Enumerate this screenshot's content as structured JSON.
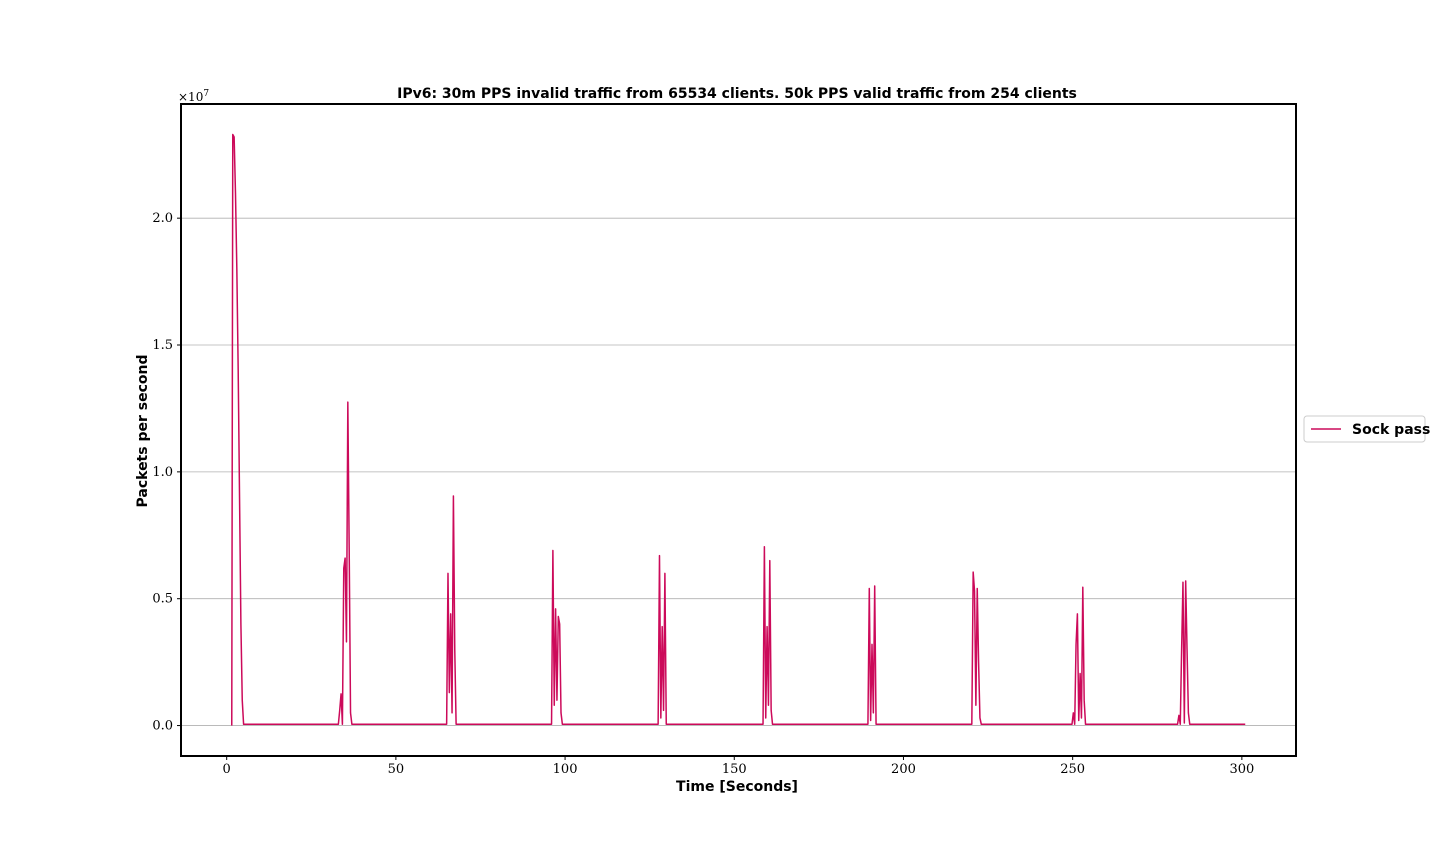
{
  "chart_data": {
    "type": "line",
    "title": "IPv6: 30m PPS invalid traffic from 65534 clients. 50k PPS valid traffic from 254 clients",
    "xlabel": "Time [Seconds]",
    "ylabel": "Packets per second",
    "y_multiplier_base": "×10",
    "y_multiplier_exp": "7",
    "xlim": [
      -13.5,
      316
    ],
    "ylim": [
      -0.12,
      2.45
    ],
    "xticks": [
      0,
      50,
      100,
      150,
      200,
      250,
      300
    ],
    "xtick_labels": [
      "0",
      "50",
      "100",
      "150",
      "200",
      "250",
      "300"
    ],
    "yticks": [
      0.0,
      0.5,
      1.0,
      1.5,
      2.0
    ],
    "ytick_labels": [
      "0.0",
      "0.5",
      "1.0",
      "1.5",
      "2.0"
    ],
    "grid": "horizontal",
    "legend_position": "right",
    "colors": {
      "series": "#cc0a5a",
      "grid": "#b0b0b0",
      "axes": "#000000"
    },
    "series": [
      {
        "name": "Sock pass",
        "x": [
          1.5,
          1.8,
          2.2,
          2.6,
          3.0,
          3.4,
          3.8,
          4.2,
          4.6,
          5.0,
          5.4,
          33.0,
          33.4,
          33.8,
          34.2,
          34.6,
          35.0,
          35.4,
          35.8,
          36.2,
          36.6,
          37.0,
          37.4,
          65.0,
          65.4,
          65.8,
          66.2,
          66.6,
          67.0,
          67.4,
          67.8,
          68.2,
          68.6,
          96.0,
          96.4,
          96.8,
          97.2,
          97.6,
          98.0,
          98.4,
          98.8,
          99.2,
          99.6,
          100.0,
          127.5,
          127.9,
          128.3,
          128.7,
          129.1,
          129.5,
          129.9,
          130.3,
          130.7,
          158.5,
          158.9,
          159.3,
          159.7,
          160.1,
          160.5,
          160.9,
          161.3,
          161.7,
          189.5,
          189.9,
          190.3,
          190.7,
          191.1,
          191.5,
          191.9,
          192.3,
          192.7,
          220.2,
          220.6,
          221.0,
          221.4,
          221.8,
          222.2,
          222.6,
          223.0,
          223.4,
          249.8,
          250.2,
          250.6,
          251.0,
          251.4,
          251.8,
          252.2,
          252.6,
          253.0,
          253.4,
          253.8,
          254.2,
          281.0,
          281.4,
          281.8,
          282.2,
          282.6,
          283.0,
          283.4,
          283.8,
          284.2,
          284.6,
          285.0,
          285.4,
          301.0
        ],
        "y": [
          0.0,
          2.33,
          2.32,
          2.1,
          1.8,
          1.4,
          0.9,
          0.4,
          0.1,
          0.005,
          0.005,
          0.005,
          0.06,
          0.125,
          0.005,
          0.62,
          0.66,
          0.33,
          1.275,
          0.7,
          0.05,
          0.005,
          0.005,
          0.005,
          0.6,
          0.13,
          0.44,
          0.05,
          0.905,
          0.3,
          0.005,
          0.005,
          0.005,
          0.005,
          0.69,
          0.08,
          0.46,
          0.1,
          0.43,
          0.4,
          0.05,
          0.005,
          0.005,
          0.005,
          0.005,
          0.67,
          0.03,
          0.39,
          0.06,
          0.6,
          0.005,
          0.005,
          0.005,
          0.005,
          0.705,
          0.03,
          0.39,
          0.08,
          0.65,
          0.06,
          0.005,
          0.005,
          0.005,
          0.54,
          0.02,
          0.32,
          0.05,
          0.55,
          0.005,
          0.005,
          0.005,
          0.005,
          0.605,
          0.53,
          0.08,
          0.54,
          0.25,
          0.03,
          0.005,
          0.005,
          0.005,
          0.05,
          0.005,
          0.32,
          0.44,
          0.02,
          0.205,
          0.03,
          0.545,
          0.1,
          0.005,
          0.005,
          0.005,
          0.04,
          0.005,
          0.3,
          0.565,
          0.01,
          0.57,
          0.3,
          0.05,
          0.005,
          0.005,
          0.005,
          0.005
        ]
      }
    ]
  }
}
